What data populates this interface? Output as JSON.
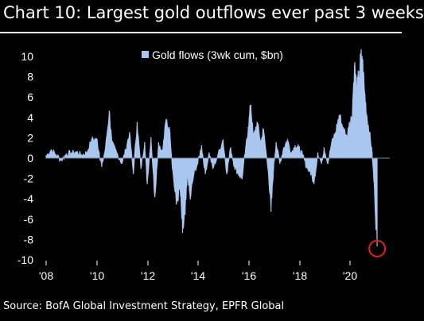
{
  "chart_title": "Chart 10: Largest gold outflows ever past 3 weeks",
  "source": "Source: BofA Global Investment Strategy, EPFR Global",
  "colors": {
    "series": "#a9c7ee",
    "highlight": "#e02020",
    "background": "#000000",
    "text": "#ffffff"
  },
  "chart_data": {
    "type": "area",
    "title": "Chart 10: Largest gold outflows ever past 3 weeks",
    "xlabel": "",
    "ylabel": "",
    "x_tick_labels": [
      "'08",
      "'10",
      "'12",
      "'14",
      "'16",
      "'18",
      "'20"
    ],
    "y_ticks": [
      10,
      8,
      6,
      4,
      2,
      0,
      -2,
      -4,
      -6,
      -8,
      -10
    ],
    "ylim": [
      -10,
      10
    ],
    "xlim": [
      2008.0,
      2021.6
    ],
    "grid": false,
    "legend": {
      "position": "top-center",
      "entries": [
        "Gold flows (3wk cum, $bn)"
      ]
    },
    "series": [
      {
        "name": "Gold flows (3wk cum, $bn)",
        "points": [
          [
            2008.0,
            0.2
          ],
          [
            2008.2,
            0.8
          ],
          [
            2008.4,
            0.3
          ],
          [
            2008.6,
            -0.2
          ],
          [
            2008.8,
            0.4
          ],
          [
            2009.0,
            0.5
          ],
          [
            2009.2,
            0.6
          ],
          [
            2009.4,
            0.3
          ],
          [
            2009.6,
            0.5
          ],
          [
            2009.8,
            1.8
          ],
          [
            2010.0,
            1.9
          ],
          [
            2010.1,
            0.5
          ],
          [
            2010.2,
            -0.8
          ],
          [
            2010.35,
            1.0
          ],
          [
            2010.5,
            4.6
          ],
          [
            2010.6,
            1.5
          ],
          [
            2010.8,
            0.5
          ],
          [
            2011.0,
            -0.5
          ],
          [
            2011.15,
            0.8
          ],
          [
            2011.3,
            2.5
          ],
          [
            2011.45,
            -1.5
          ],
          [
            2011.6,
            3.5
          ],
          [
            2011.75,
            -1.0
          ],
          [
            2011.9,
            1.5
          ],
          [
            2012.0,
            -2.5
          ],
          [
            2012.15,
            2.0
          ],
          [
            2012.3,
            -3.8
          ],
          [
            2012.45,
            1.5
          ],
          [
            2012.6,
            0.5
          ],
          [
            2012.75,
            3.8
          ],
          [
            2012.9,
            2.5
          ],
          [
            2013.0,
            -1.0
          ],
          [
            2013.15,
            -4.5
          ],
          [
            2013.3,
            -3.0
          ],
          [
            2013.4,
            -7.3
          ],
          [
            2013.5,
            -5.5
          ],
          [
            2013.6,
            -1.5
          ],
          [
            2013.7,
            -4.0
          ],
          [
            2013.85,
            -1.5
          ],
          [
            2014.0,
            -0.5
          ],
          [
            2014.15,
            1.2
          ],
          [
            2014.3,
            -1.5
          ],
          [
            2014.45,
            0.5
          ],
          [
            2014.6,
            -1.0
          ],
          [
            2014.8,
            0.3
          ],
          [
            2015.0,
            1.8
          ],
          [
            2015.15,
            -1.5
          ],
          [
            2015.3,
            1.0
          ],
          [
            2015.45,
            -0.8
          ],
          [
            2015.6,
            -1.5
          ],
          [
            2015.75,
            -2.0
          ],
          [
            2015.9,
            1.0
          ],
          [
            2016.0,
            3.0
          ],
          [
            2016.1,
            5.2
          ],
          [
            2016.2,
            2.0
          ],
          [
            2016.35,
            3.5
          ],
          [
            2016.5,
            1.5
          ],
          [
            2016.6,
            2.8
          ],
          [
            2016.8,
            -1.5
          ],
          [
            2016.9,
            -5.2
          ],
          [
            2017.0,
            -1.0
          ],
          [
            2017.1,
            1.5
          ],
          [
            2017.25,
            -0.5
          ],
          [
            2017.4,
            1.0
          ],
          [
            2017.55,
            1.8
          ],
          [
            2017.7,
            0.5
          ],
          [
            2017.85,
            1.2
          ],
          [
            2018.0,
            1.0
          ],
          [
            2018.15,
            0.3
          ],
          [
            2018.3,
            -0.8
          ],
          [
            2018.45,
            -1.3
          ],
          [
            2018.6,
            -2.5
          ],
          [
            2018.75,
            0.5
          ],
          [
            2018.9,
            -0.5
          ],
          [
            2019.0,
            1.0
          ],
          [
            2019.15,
            -0.5
          ],
          [
            2019.3,
            1.5
          ],
          [
            2019.45,
            2.5
          ],
          [
            2019.6,
            4.2
          ],
          [
            2019.75,
            3.0
          ],
          [
            2019.9,
            2.0
          ],
          [
            2020.0,
            3.5
          ],
          [
            2020.1,
            4.0
          ],
          [
            2020.2,
            9.0
          ],
          [
            2020.3,
            6.5
          ],
          [
            2020.4,
            8.5
          ],
          [
            2020.5,
            10.0
          ],
          [
            2020.6,
            6.5
          ],
          [
            2020.7,
            4.0
          ],
          [
            2020.8,
            2.5
          ],
          [
            2020.9,
            0.5
          ],
          [
            2021.0,
            -3.5
          ],
          [
            2021.1,
            -8.6
          ]
        ]
      }
    ],
    "annotations": [
      {
        "type": "circle",
        "x": 2021.1,
        "y": -8.9,
        "color": "#e02020"
      }
    ]
  }
}
